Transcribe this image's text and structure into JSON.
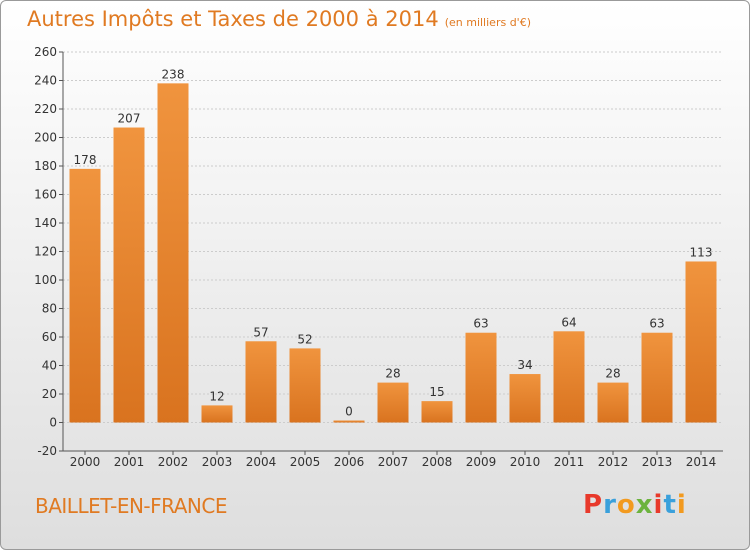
{
  "title": "Autres Impôts et Taxes de 2000 à 2014",
  "subtitle": "(en milliers d'€)",
  "city": "BAILLET-EN-FRANCE",
  "logo": {
    "letters": [
      "P",
      "r",
      "o",
      "x",
      "i",
      "t",
      "i"
    ],
    "colors": [
      "#e8392b",
      "#3aa0db",
      "#f29a1f",
      "#6cb33e",
      "#e8392b",
      "#3aa0db",
      "#f29a1f"
    ]
  },
  "colors": {
    "bar": "#f0943e",
    "bar_dark": "#d9731f",
    "grid": "#cccccc",
    "text": "#333333",
    "accent": "#e07a22"
  },
  "chart_data": {
    "type": "bar",
    "categories": [
      "2000",
      "2001",
      "2002",
      "2003",
      "2004",
      "2005",
      "2006",
      "2007",
      "2008",
      "2009",
      "2010",
      "2011",
      "2012",
      "2013",
      "2014"
    ],
    "values": [
      178,
      207,
      238,
      12,
      57,
      52,
      0,
      28,
      15,
      63,
      34,
      64,
      28,
      63,
      113
    ],
    "ylim": [
      -20,
      260
    ],
    "yticks": [
      -20,
      0,
      20,
      40,
      60,
      80,
      100,
      120,
      140,
      160,
      180,
      200,
      220,
      240,
      260
    ],
    "grid": true
  }
}
